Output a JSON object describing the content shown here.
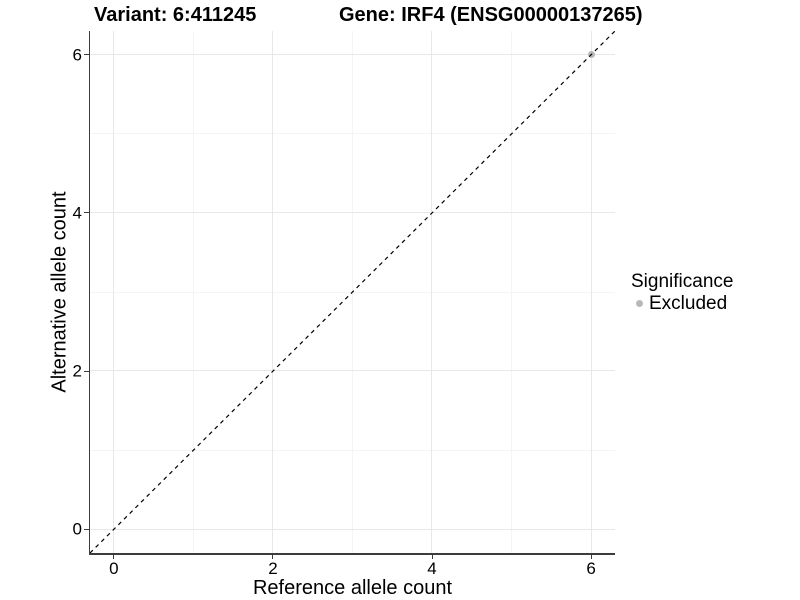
{
  "header": {
    "variant_title": "Variant: 6:411245",
    "gene_title": "Gene: IRF4 (ENSG00000137265)"
  },
  "legend": {
    "title": "Significance",
    "items": [
      {
        "label": "Excluded",
        "color": "#b8b8b8"
      }
    ]
  },
  "chart_data": {
    "type": "scatter",
    "title": "Variant: 6:411245 | Gene: IRF4 (ENSG00000137265)",
    "xlabel": "Reference allele count",
    "ylabel": "Alternative allele count",
    "xlim": [
      -0.3,
      6.3
    ],
    "ylim": [
      -0.3,
      6.3
    ],
    "x_ticks": [
      0,
      2,
      4,
      6
    ],
    "y_ticks": [
      0,
      2,
      4,
      6
    ],
    "x_minor_ticks": [
      1,
      3,
      5
    ],
    "y_minor_ticks": [
      1,
      3,
      5
    ],
    "grid": "major+minor",
    "legend_position": "right",
    "legend_title": "Significance",
    "series": [
      {
        "name": "Excluded",
        "color": "#b8b8b8",
        "points": [
          {
            "x": 6,
            "y": 6
          }
        ]
      }
    ],
    "reference_line": {
      "type": "identity",
      "equation": "y = x",
      "style": "dashed",
      "color": "#000000",
      "from": [
        -0.3,
        -0.3
      ],
      "to": [
        6.3,
        6.3
      ]
    }
  },
  "colors": {
    "background": "#ffffff",
    "grid_major": "#e8e8e8",
    "grid_minor": "#f4f4f4",
    "axis_line": "#3c3c3c",
    "text": "#000000",
    "point_excluded": "#b8b8b8"
  }
}
